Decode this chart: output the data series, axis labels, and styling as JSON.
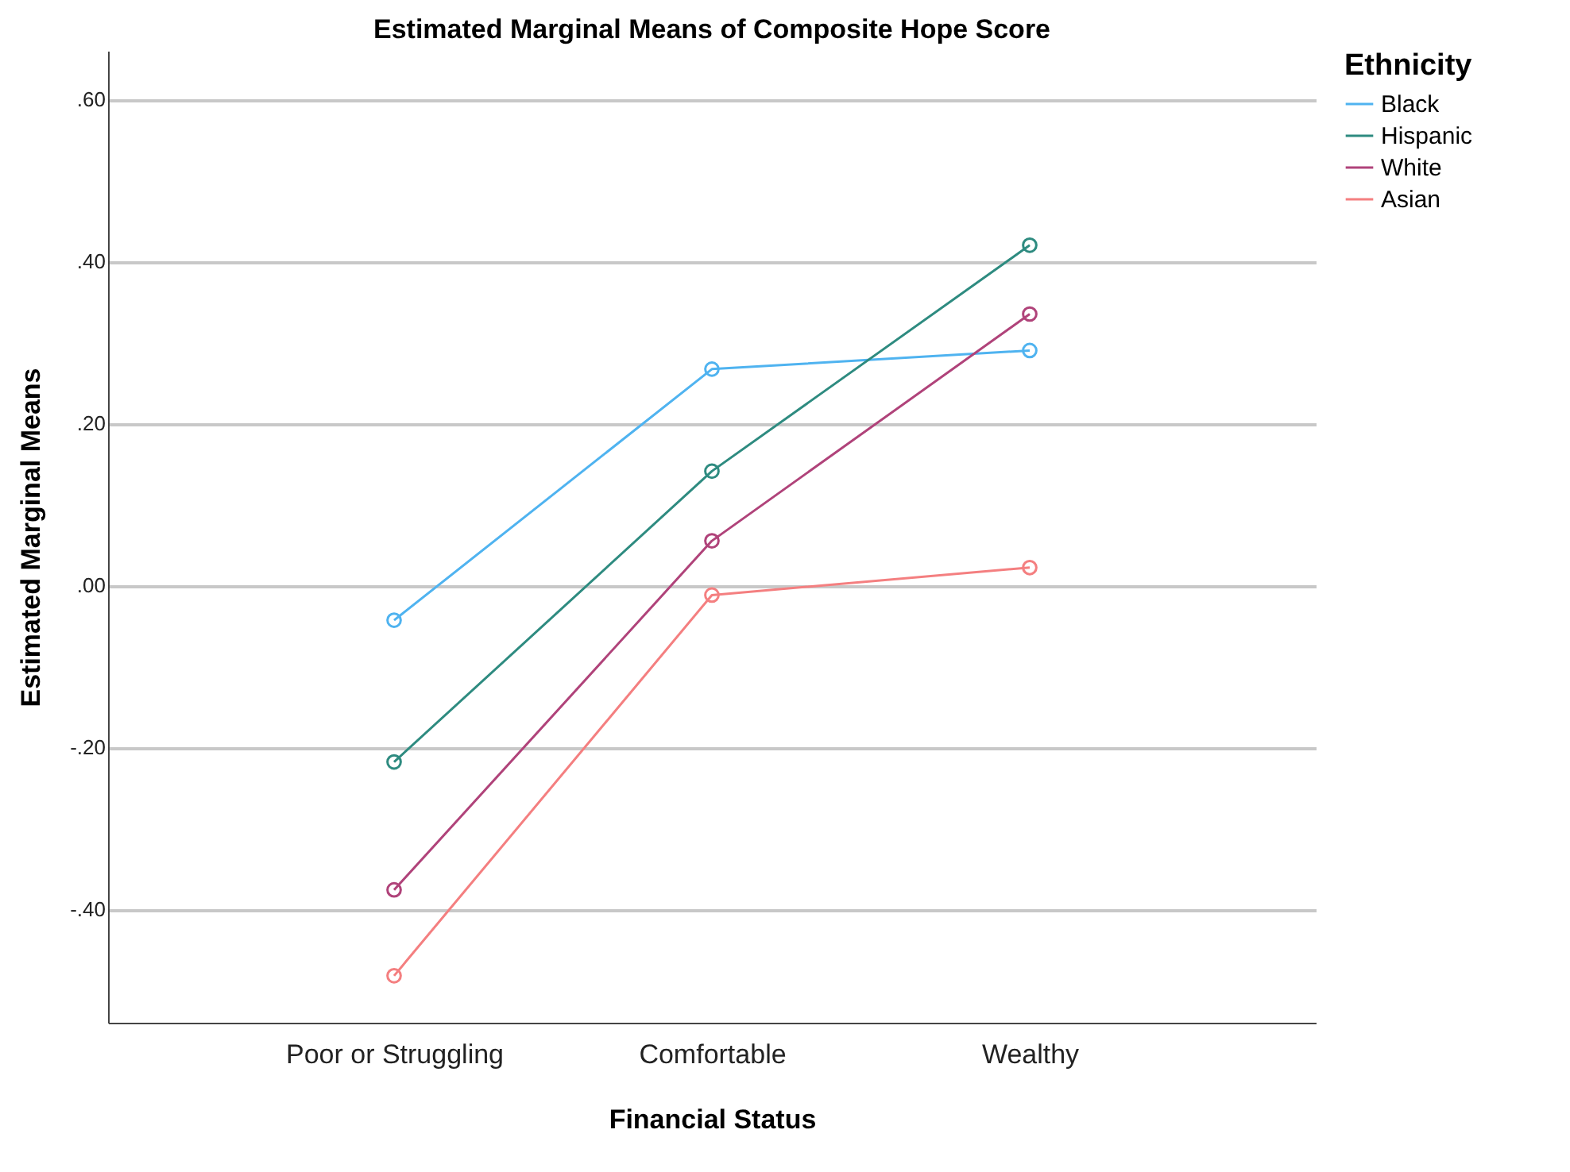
{
  "chart_data": {
    "type": "line",
    "title": "Estimated Marginal Means of Composite Hope Score",
    "xlabel": "Financial Status",
    "ylabel": "Estimated Marginal Means",
    "legend_title": "Ethnicity",
    "categories": [
      "Poor or Struggling",
      "Comfortable",
      "Wealthy"
    ],
    "series": [
      {
        "name": "Black",
        "color": "#4fb3f0",
        "values": [
          -0.043,
          0.267,
          0.29
        ]
      },
      {
        "name": "Hispanic",
        "color": "#2e8b80",
        "values": [
          -0.218,
          0.141,
          0.42
        ]
      },
      {
        "name": "White",
        "color": "#b0437a",
        "values": [
          -0.376,
          0.055,
          0.335
        ]
      },
      {
        "name": "Asian",
        "color": "#f47f80",
        "values": [
          -0.482,
          -0.012,
          0.022
        ]
      }
    ],
    "ylim": [
      -0.54,
      0.66
    ],
    "yticks": [
      {
        "value": -0.4,
        "label": "-.40"
      },
      {
        "value": -0.2,
        "label": "-.20"
      },
      {
        "value": 0,
        "label": ".00"
      },
      {
        "value": 0.2,
        "label": ".20"
      },
      {
        "value": 0.4,
        "label": ".40"
      },
      {
        "value": 0.6,
        "label": ".60"
      }
    ],
    "grid": "y",
    "legend": "top right",
    "marker": "circle",
    "line_style": "solid"
  }
}
